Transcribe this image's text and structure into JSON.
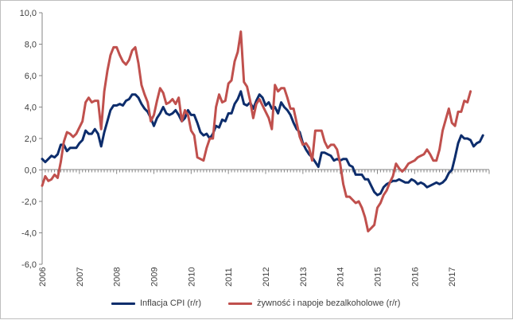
{
  "chart_data": {
    "type": "line",
    "title": "",
    "xlabel": "",
    "ylabel": "",
    "ylim": [
      -6,
      10
    ],
    "y_ticks": [
      "10,0",
      "8,0",
      "6,0",
      "4,0",
      "2,0",
      "0,0",
      "-2,0",
      "-4,0",
      "-6,0"
    ],
    "x_ticks": [
      "2006",
      "2007",
      "2008",
      "2009",
      "2010",
      "2011",
      "2012",
      "2013",
      "2014",
      "2015",
      "2016",
      "2017"
    ],
    "x_start_year": 2006,
    "grid": false,
    "legend_position": "bottom",
    "series": [
      {
        "name": "Inflacja CPI (r/r)",
        "color": "#0d2d6c",
        "values": [
          0.7,
          0.5,
          0.7,
          0.9,
          0.8,
          1.0,
          1.6,
          1.6,
          1.2,
          1.4,
          1.4,
          1.4,
          1.7,
          1.9,
          2.5,
          2.3,
          2.3,
          2.6,
          2.3,
          1.5,
          2.4,
          3.1,
          3.8,
          4.1,
          4.1,
          4.2,
          4.1,
          4.4,
          4.5,
          4.8,
          4.8,
          4.6,
          4.2,
          3.9,
          3.7,
          3.3,
          2.8,
          3.3,
          3.6,
          4.0,
          3.6,
          3.5,
          3.6,
          3.8,
          3.5,
          3.1,
          3.3,
          3.8,
          3.5,
          3.5,
          3.0,
          2.4,
          2.2,
          2.3,
          2.0,
          2.3,
          2.8,
          2.7,
          3.2,
          3.1,
          3.6,
          3.6,
          4.2,
          4.5,
          5.0,
          4.2,
          4.1,
          4.3,
          3.9,
          4.4,
          4.8,
          4.6,
          4.1,
          4.3,
          3.9,
          4.0,
          3.6,
          4.3,
          4.0,
          3.8,
          3.5,
          3.0,
          2.6,
          2.4,
          1.7,
          1.3,
          1.0,
          0.8,
          0.5,
          0.2,
          1.1,
          1.1,
          1.0,
          0.9,
          0.6,
          0.7,
          0.6,
          0.7,
          0.7,
          0.3,
          0.2,
          -0.3,
          -0.3,
          -0.3,
          -0.6,
          -0.6,
          -1.0,
          -1.4,
          -1.6,
          -1.5,
          -1.1,
          -0.9,
          -0.8,
          -0.7,
          -0.7,
          -0.6,
          -0.7,
          -0.8,
          -0.8,
          -0.6,
          -0.7,
          -0.9,
          -0.8,
          -0.9,
          -1.1,
          -1.0,
          -0.9,
          -0.8,
          -0.9,
          -0.8,
          -0.6,
          -0.2,
          0.0,
          0.8,
          1.7,
          2.2,
          2.0,
          2.0,
          1.9,
          1.5,
          1.7,
          1.8,
          2.2
        ]
      },
      {
        "name": "żywność i napoje bezalkoholowe (r/r)",
        "color": "#c0504d",
        "values": [
          -1.0,
          -0.4,
          -0.7,
          -0.6,
          -0.3,
          -0.5,
          0.5,
          1.8,
          2.4,
          2.3,
          2.1,
          2.3,
          2.7,
          3.1,
          4.3,
          4.6,
          4.3,
          4.4,
          4.4,
          2.6,
          5.0,
          6.3,
          7.3,
          7.8,
          7.8,
          7.3,
          6.9,
          6.7,
          7.0,
          7.6,
          7.8,
          6.8,
          5.4,
          4.8,
          4.3,
          3.1,
          3.5,
          4.4,
          5.2,
          4.9,
          4.2,
          4.3,
          4.5,
          4.2,
          4.6,
          3.1,
          3.8,
          3.5,
          2.5,
          2.2,
          0.8,
          0.7,
          0.6,
          1.4,
          2.0,
          2.0,
          4.0,
          4.8,
          4.3,
          4.4,
          5.5,
          5.7,
          6.9,
          7.5,
          8.8,
          5.6,
          5.3,
          4.4,
          3.3,
          4.2,
          4.5,
          4.1,
          3.7,
          3.3,
          2.6,
          5.4,
          5.0,
          5.2,
          5.2,
          4.6,
          3.9,
          3.9,
          3.0,
          2.1,
          1.6,
          1.7,
          1.4,
          0.6,
          2.5,
          2.5,
          2.5,
          1.8,
          1.4,
          1.6,
          1.6,
          1.3,
          0.4,
          -0.9,
          -1.7,
          -1.7,
          -1.9,
          -2.1,
          -2.0,
          -2.4,
          -3.0,
          -3.9,
          -3.7,
          -3.5,
          -2.4,
          -2.1,
          -1.6,
          -1.3,
          -0.8,
          -0.4,
          0.4,
          0.1,
          -0.1,
          0.1,
          0.4,
          0.5,
          0.6,
          0.8,
          0.9,
          1.0,
          1.3,
          1.0,
          0.6,
          0.6,
          1.3,
          2.5,
          3.2,
          3.9,
          3.0,
          2.8,
          3.7,
          3.7,
          4.4,
          4.3,
          5.0
        ]
      }
    ]
  }
}
